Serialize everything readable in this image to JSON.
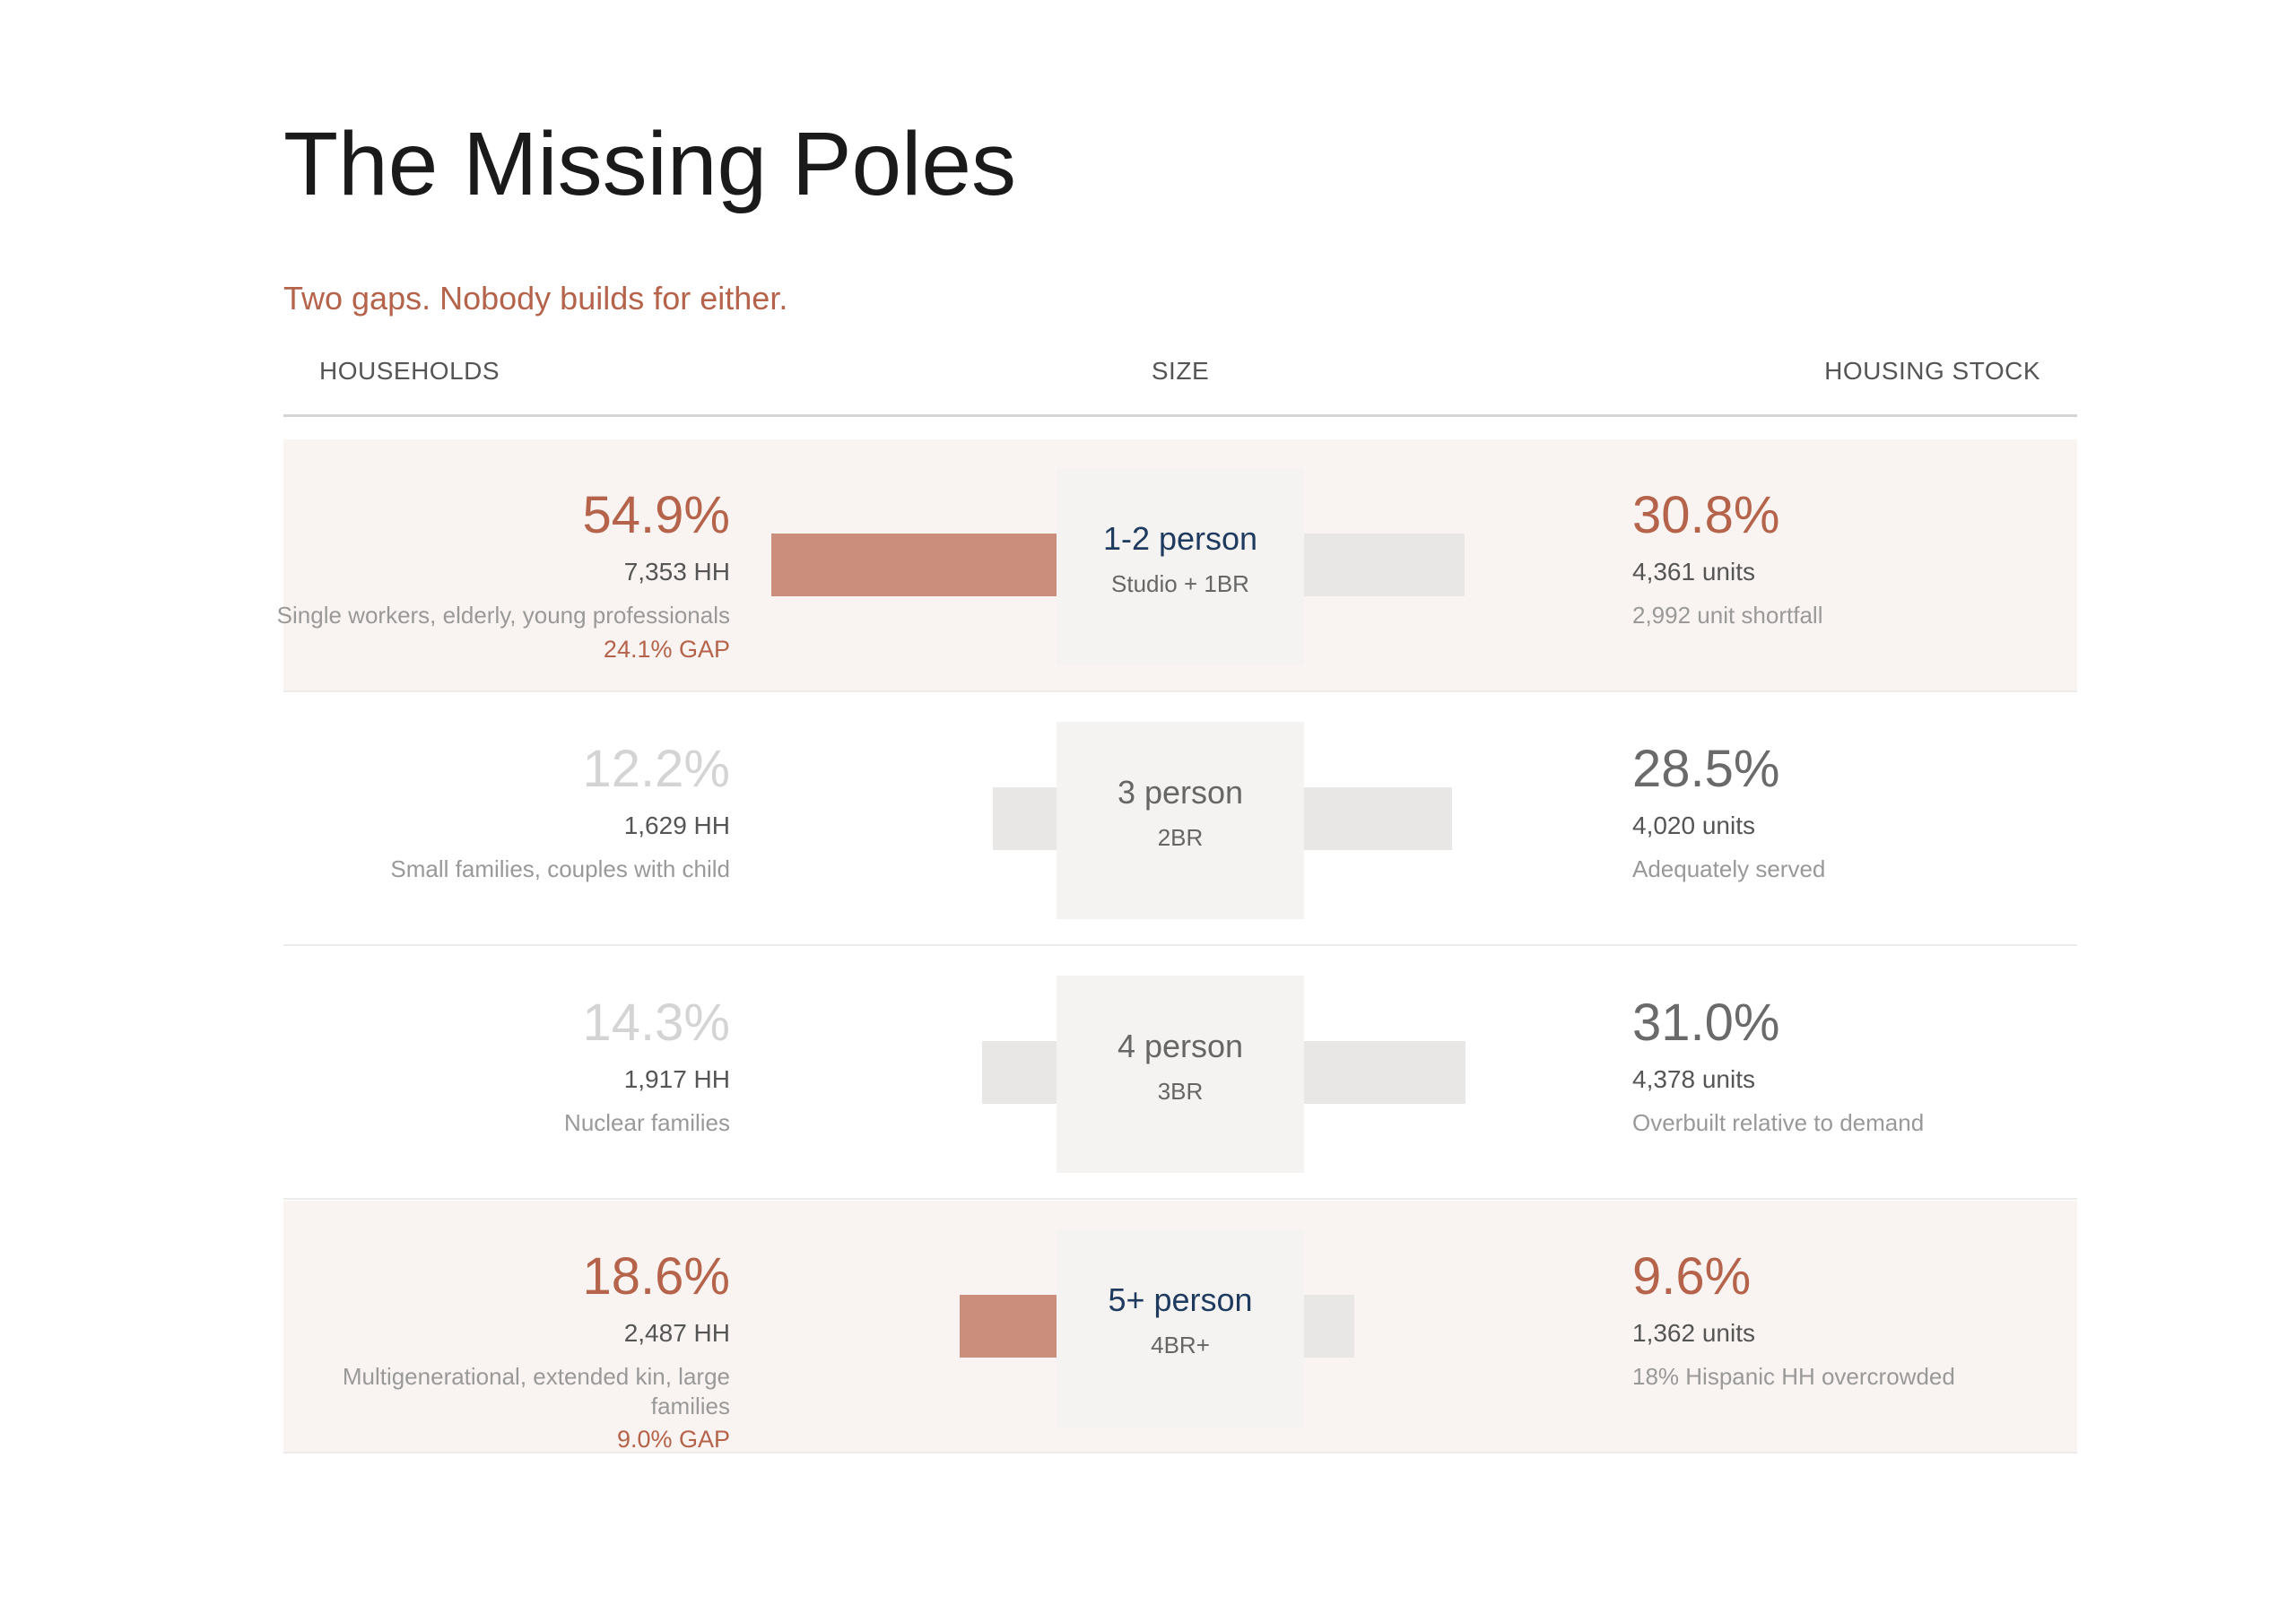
{
  "title": "The Missing Poles",
  "subtitle": "Two gaps. Nobody builds for either.",
  "columns": {
    "households": "HOUSEHOLDS",
    "size": "SIZE",
    "housing_stock": "HOUSING STOCK"
  },
  "colors": {
    "accent": "#b5634a",
    "accent_bar": "#cb8e7d",
    "neutral_bar": "#e8e7e5",
    "highlight_row": "#f9f4f1",
    "size_dark": "#1f3a5f"
  },
  "chart_data": {
    "type": "bar",
    "title": "The Missing Poles",
    "subtitle": "Two gaps. Nobody builds for either.",
    "categories": [
      "1-2 person",
      "3 person",
      "4 person",
      "5+ person"
    ],
    "series": [
      {
        "name": "HOUSEHOLDS",
        "values": [
          54.9,
          12.2,
          14.3,
          18.6
        ]
      },
      {
        "name": "HOUSING STOCK",
        "values": [
          30.8,
          28.5,
          31.0,
          9.6
        ]
      }
    ],
    "rows": [
      {
        "size": "1-2 person",
        "size_sub": "Studio + 1BR",
        "highlight": true,
        "hh_pct": 54.9,
        "hh_pct_label": "54.9%",
        "hh_count": "7,353 HH",
        "hh_desc": "Single workers, elderly, young professionals",
        "gap": "24.1% GAP",
        "stock_pct": 30.8,
        "stock_pct_label": "30.8%",
        "stock_count": "4,361 units",
        "stock_desc": "2,992 unit shortfall"
      },
      {
        "size": "3 person",
        "size_sub": "2BR",
        "highlight": false,
        "hh_pct": 12.2,
        "hh_pct_label": "12.2%",
        "hh_count": "1,629 HH",
        "hh_desc": "Small families, couples with child",
        "gap": "",
        "stock_pct": 28.5,
        "stock_pct_label": "28.5%",
        "stock_count": "4,020 units",
        "stock_desc": "Adequately served"
      },
      {
        "size": "4 person",
        "size_sub": "3BR",
        "highlight": false,
        "hh_pct": 14.3,
        "hh_pct_label": "14.3%",
        "hh_count": "1,917 HH",
        "hh_desc": "Nuclear families",
        "gap": "",
        "stock_pct": 31.0,
        "stock_pct_label": "31.0%",
        "stock_count": "4,378 units",
        "stock_desc": "Overbuilt relative to demand"
      },
      {
        "size": "5+ person",
        "size_sub": "4BR+",
        "highlight": true,
        "hh_pct": 18.6,
        "hh_pct_label": "18.6%",
        "hh_count": "2,487 HH",
        "hh_desc": "Multigenerational, extended kin, large families",
        "gap": "9.0% GAP",
        "stock_pct": 9.6,
        "stock_pct_label": "9.6%",
        "stock_count": "1,362 units",
        "stock_desc": "18% Hispanic HH overcrowded"
      }
    ]
  }
}
